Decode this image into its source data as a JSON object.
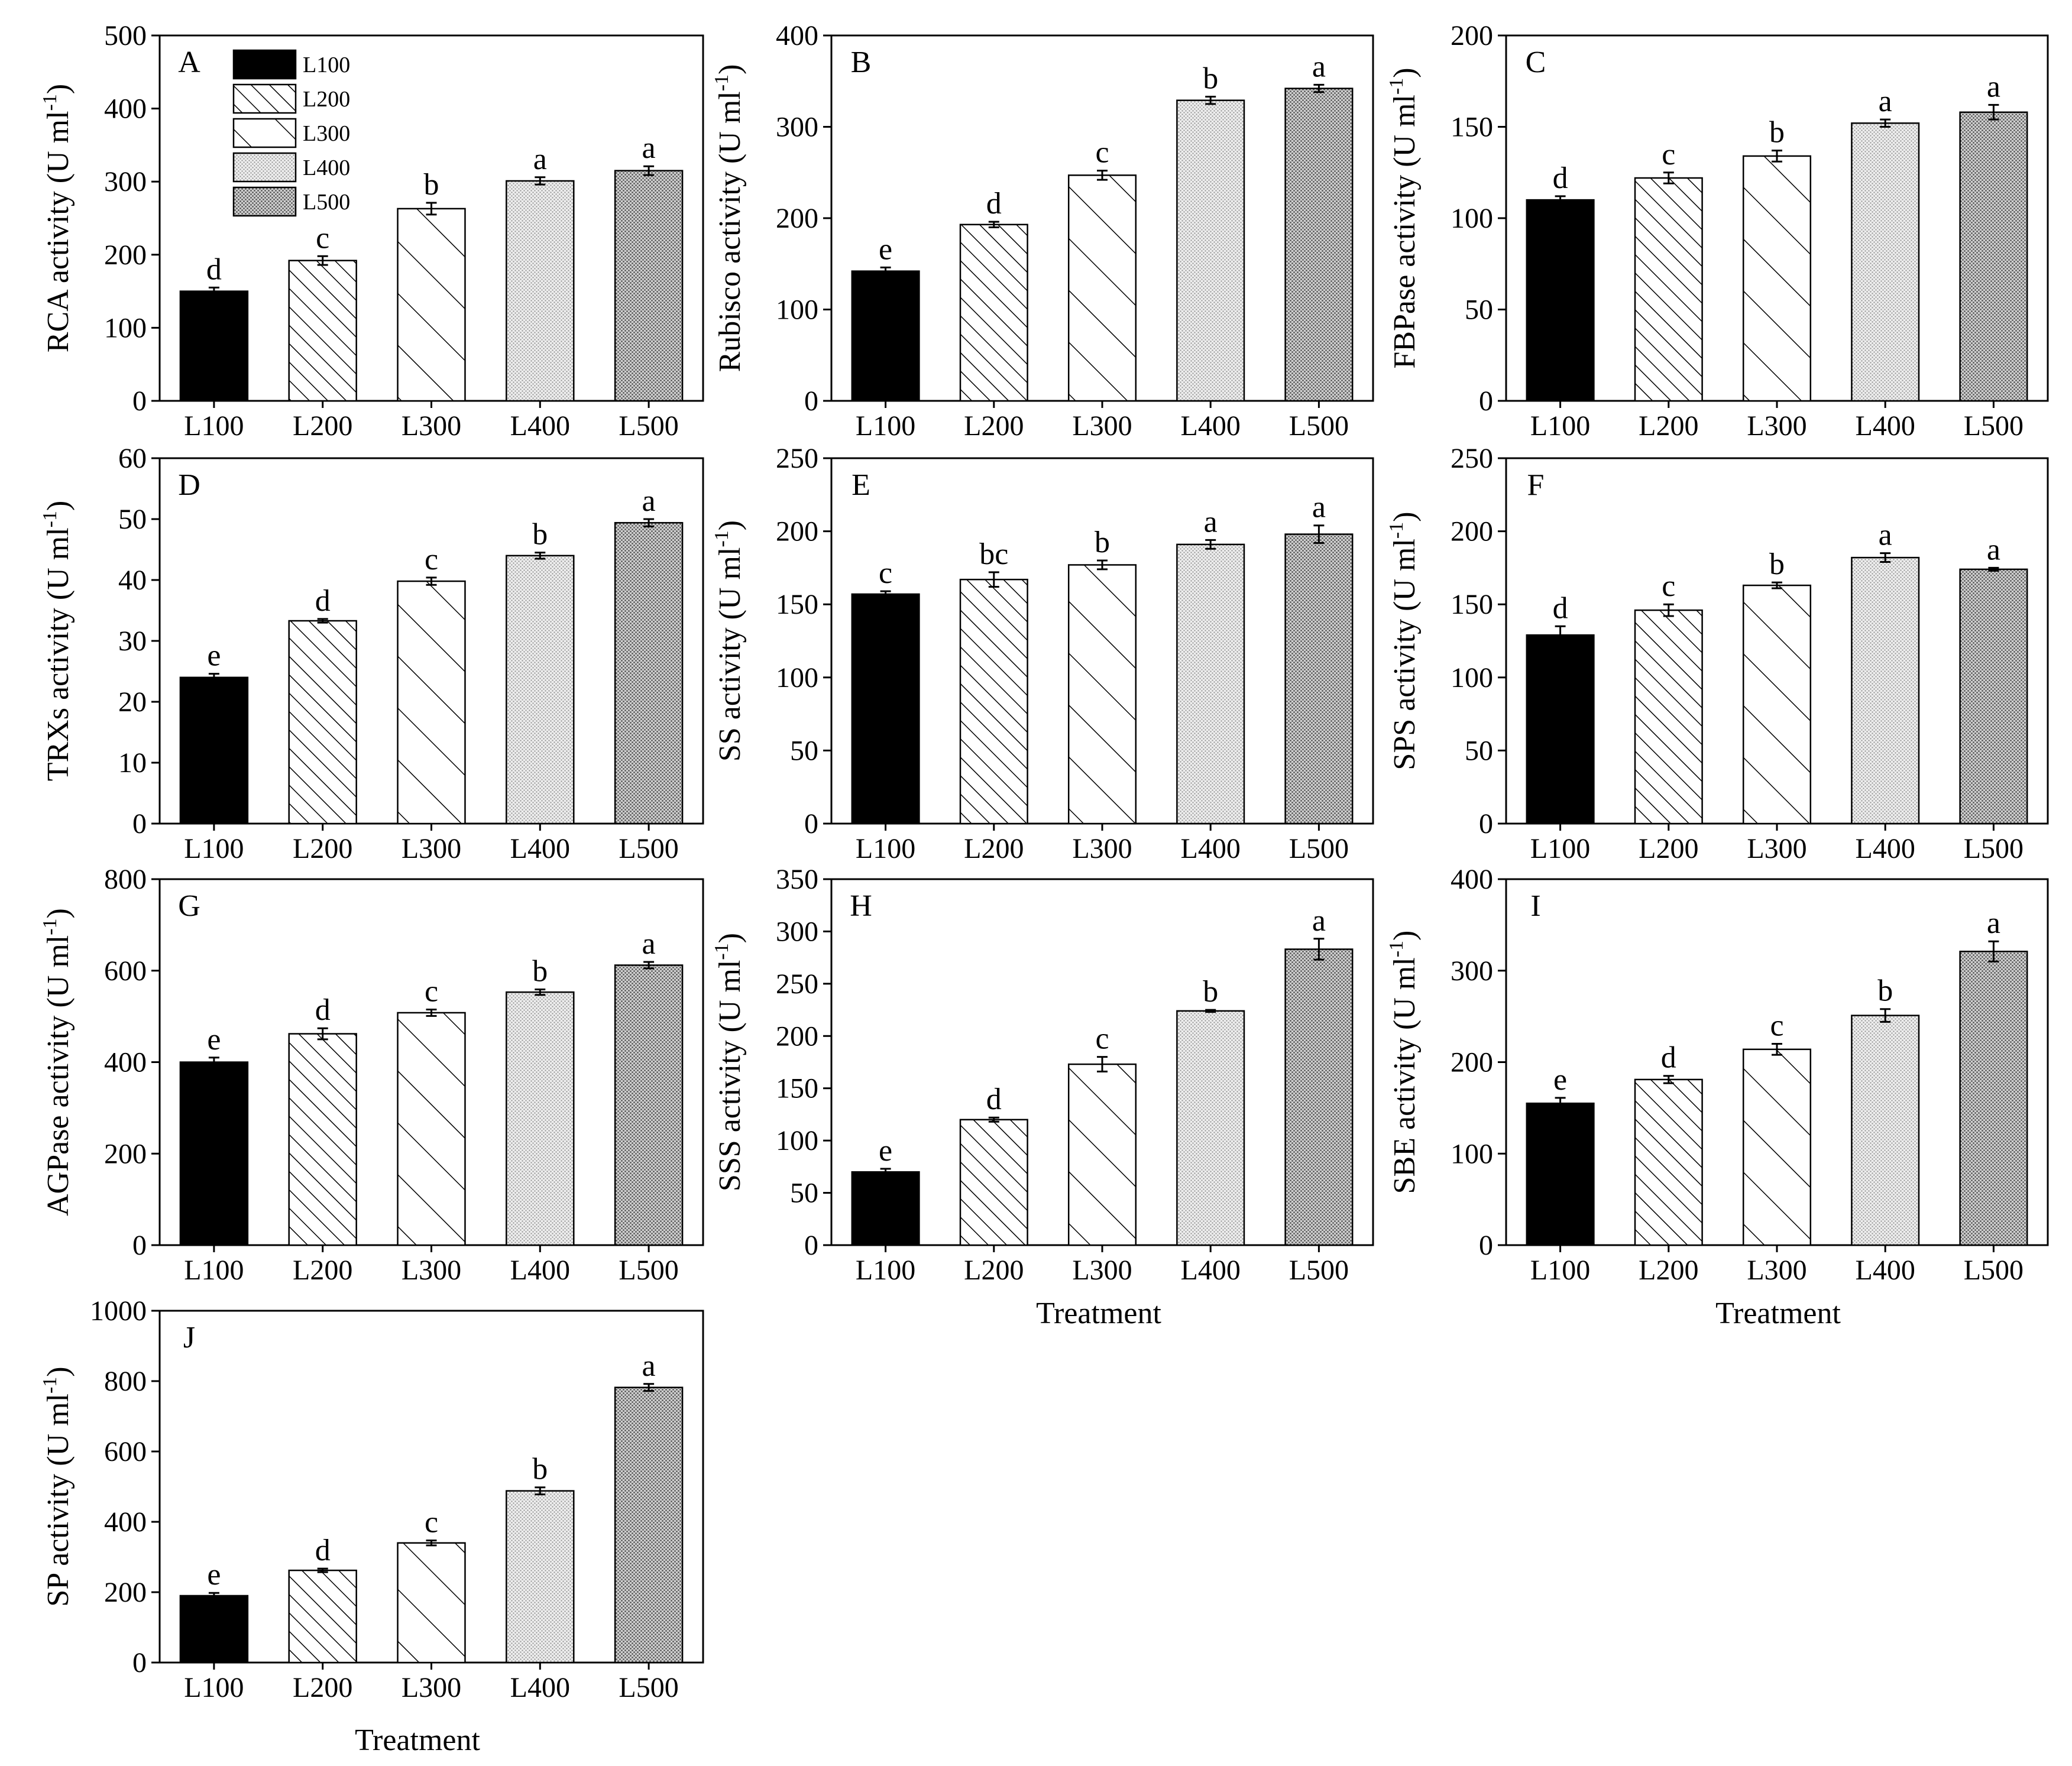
{
  "legend": {
    "entries": [
      {
        "label": "L100",
        "pattern": "solid"
      },
      {
        "label": "L200",
        "pattern": "hatch-dense"
      },
      {
        "label": "L300",
        "pattern": "hatch-wide"
      },
      {
        "label": "L400",
        "pattern": "dots-light"
      },
      {
        "label": "L500",
        "pattern": "dots-dark"
      }
    ]
  },
  "x_axis_title": "Treatment",
  "chart_data": [
    {
      "panel": "A",
      "type": "bar",
      "title": "",
      "xlabel": "",
      "ylabel": "RCA activity (U ml-1)",
      "ylabel_main": "RCA activity (U ml",
      "ylabel_sup": "-1",
      "ylabel_end": ")",
      "categories": [
        "L100",
        "L200",
        "L300",
        "L400",
        "L500"
      ],
      "values": [
        150,
        192,
        263,
        301,
        315
      ],
      "errors": [
        5,
        6,
        8,
        5,
        6
      ],
      "significance": [
        "d",
        "c",
        "b",
        "a",
        "a"
      ],
      "ylim": [
        0,
        500
      ],
      "yticks": [
        0,
        100,
        200,
        300,
        400,
        500
      ]
    },
    {
      "panel": "B",
      "type": "bar",
      "title": "",
      "xlabel": "",
      "ylabel": "Rubisco activity (U ml-1)",
      "ylabel_main": "Rubisco activity (U ml",
      "ylabel_sup": "-1",
      "ylabel_end": ")",
      "categories": [
        "L100",
        "L200",
        "L300",
        "L400",
        "L500"
      ],
      "values": [
        142,
        193,
        247,
        329,
        342
      ],
      "errors": [
        4,
        3,
        5,
        4,
        4
      ],
      "significance": [
        "e",
        "d",
        "c",
        "b",
        "a"
      ],
      "ylim": [
        0,
        400
      ],
      "yticks": [
        0,
        100,
        200,
        300,
        400
      ]
    },
    {
      "panel": "C",
      "type": "bar",
      "title": "",
      "xlabel": "",
      "ylabel": "FBPase activity (U ml-1)",
      "ylabel_main": "FBPase activity (U ml",
      "ylabel_sup": "-1",
      "ylabel_end": ")",
      "categories": [
        "L100",
        "L200",
        "L300",
        "L400",
        "L500"
      ],
      "values": [
        110,
        122,
        134,
        152,
        158
      ],
      "errors": [
        2,
        3,
        3,
        2,
        4
      ],
      "significance": [
        "d",
        "c",
        "b",
        "a",
        "a"
      ],
      "ylim": [
        0,
        200
      ],
      "yticks": [
        0,
        50,
        100,
        150,
        200
      ]
    },
    {
      "panel": "D",
      "type": "bar",
      "title": "",
      "xlabel": "",
      "ylabel": "TRXs activity (U ml-1)",
      "ylabel_main": "TRXs activity (U ml",
      "ylabel_sup": "-1",
      "ylabel_end": ")",
      "categories": [
        "L100",
        "L200",
        "L300",
        "L400",
        "L500"
      ],
      "values": [
        24,
        33.3,
        39.8,
        44,
        49.4
      ],
      "errors": [
        0.6,
        0.3,
        0.6,
        0.5,
        0.6
      ],
      "significance": [
        "e",
        "d",
        "c",
        "b",
        "a"
      ],
      "ylim": [
        0,
        60
      ],
      "yticks": [
        0,
        10,
        20,
        30,
        40,
        50,
        60
      ]
    },
    {
      "panel": "E",
      "type": "bar",
      "title": "",
      "xlabel": "",
      "ylabel": "SS activity (U ml-1)",
      "ylabel_main": "SS activity (U ml",
      "ylabel_sup": "-1",
      "ylabel_end": ")",
      "categories": [
        "L100",
        "L200",
        "L300",
        "L400",
        "L500"
      ],
      "values": [
        157,
        167,
        177,
        191,
        198
      ],
      "errors": [
        2,
        5,
        3,
        3,
        6
      ],
      "significance": [
        "c",
        "bc",
        "b",
        "a",
        "a"
      ],
      "ylim": [
        0,
        250
      ],
      "yticks": [
        0,
        50,
        100,
        150,
        200,
        250
      ]
    },
    {
      "panel": "F",
      "type": "bar",
      "title": "",
      "xlabel": "",
      "ylabel": "SPS activity (U ml-1)",
      "ylabel_main": "SPS activity (U ml",
      "ylabel_sup": "-1",
      "ylabel_end": ")",
      "categories": [
        "L100",
        "L200",
        "L300",
        "L400",
        "L500"
      ],
      "values": [
        129,
        146,
        163,
        182,
        174
      ],
      "errors": [
        6,
        4,
        2,
        3,
        1
      ],
      "significance": [
        "d",
        "c",
        "b",
        "a",
        "a"
      ],
      "ylim": [
        0,
        250
      ],
      "yticks": [
        0,
        50,
        100,
        150,
        200,
        250
      ]
    },
    {
      "panel": "G",
      "type": "bar",
      "title": "",
      "xlabel": "",
      "ylabel": "AGPase activity (U ml-1)",
      "ylabel_main": "AGPase activity (U ml",
      "ylabel_sup": "-1",
      "ylabel_end": ")",
      "categories": [
        "L100",
        "L200",
        "L300",
        "L400",
        "L500"
      ],
      "values": [
        400,
        462,
        508,
        553,
        612
      ],
      "errors": [
        10,
        12,
        7,
        6,
        7
      ],
      "significance": [
        "e",
        "d",
        "c",
        "b",
        "a"
      ],
      "ylim": [
        0,
        800
      ],
      "yticks": [
        0,
        200,
        400,
        600,
        800
      ]
    },
    {
      "panel": "H",
      "type": "bar",
      "title": "",
      "xlabel": "Treatment",
      "ylabel": "SSS activity (U ml-1)",
      "ylabel_main": "SSS activity (U ml",
      "ylabel_sup": "-1",
      "ylabel_end": ")",
      "categories": [
        "L100",
        "L200",
        "L300",
        "L400",
        "L500"
      ],
      "values": [
        70,
        120,
        173,
        224,
        283
      ],
      "errors": [
        3,
        2,
        7,
        1,
        10
      ],
      "significance": [
        "e",
        "d",
        "c",
        "b",
        "a"
      ],
      "ylim": [
        0,
        350
      ],
      "yticks": [
        0,
        50,
        100,
        150,
        200,
        250,
        300,
        350
      ]
    },
    {
      "panel": "I",
      "type": "bar",
      "title": "",
      "xlabel": "Treatment",
      "ylabel": "SBE activity (U ml-1)",
      "ylabel_main": "SBE activity (U ml",
      "ylabel_sup": "-1",
      "ylabel_end": ")",
      "categories": [
        "L100",
        "L200",
        "L300",
        "L400",
        "L500"
      ],
      "values": [
        155,
        181,
        214,
        251,
        321
      ],
      "errors": [
        6,
        4,
        6,
        7,
        11
      ],
      "significance": [
        "e",
        "d",
        "c",
        "b",
        "a"
      ],
      "ylim": [
        0,
        400
      ],
      "yticks": [
        0,
        100,
        200,
        300,
        400
      ]
    },
    {
      "panel": "J",
      "type": "bar",
      "title": "",
      "xlabel": "Treatment",
      "ylabel": "SP activity (U ml-1)",
      "ylabel_main": "SP activity (U ml",
      "ylabel_sup": "-1",
      "ylabel_end": ")",
      "categories": [
        "L100",
        "L200",
        "L300",
        "L400",
        "L500"
      ],
      "values": [
        190,
        262,
        340,
        488,
        782
      ],
      "errors": [
        8,
        5,
        7,
        10,
        10
      ],
      "significance": [
        "e",
        "d",
        "c",
        "b",
        "a"
      ],
      "ylim": [
        0,
        1000
      ],
      "yticks": [
        0,
        200,
        400,
        600,
        800,
        1000
      ]
    }
  ]
}
